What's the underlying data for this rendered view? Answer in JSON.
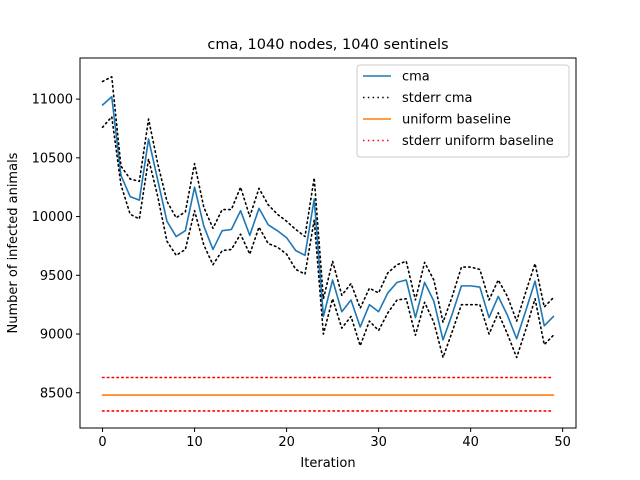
{
  "chart_data": {
    "type": "line",
    "title": "cma, 1040 nodes, 1040 sentinels",
    "xlabel": "Iteration",
    "ylabel": "Number of infected animals",
    "xlim": [
      -2.45,
      51.45
    ],
    "ylim": [
      8200,
      11350
    ],
    "xticks": [
      0,
      10,
      20,
      30,
      40,
      50
    ],
    "yticks": [
      8500,
      9000,
      9500,
      10000,
      10500,
      11000
    ],
    "grid": false,
    "legend_position": "top-right",
    "x": [
      0,
      1,
      2,
      3,
      4,
      5,
      6,
      7,
      8,
      9,
      10,
      11,
      12,
      13,
      14,
      15,
      16,
      17,
      18,
      19,
      20,
      21,
      22,
      23,
      24,
      25,
      26,
      27,
      28,
      29,
      30,
      31,
      32,
      33,
      34,
      35,
      36,
      37,
      38,
      39,
      40,
      41,
      42,
      43,
      44,
      45,
      46,
      47,
      48,
      49
    ],
    "series": [
      {
        "name": "cma",
        "color": "#1f77b4",
        "style": "solid",
        "values": [
          10950,
          11020,
          10350,
          10170,
          10140,
          10660,
          10310,
          9960,
          9830,
          9880,
          10250,
          9920,
          9720,
          9880,
          9890,
          10050,
          9840,
          10070,
          9930,
          9880,
          9820,
          9710,
          9670,
          10150,
          9150,
          9460,
          9190,
          9290,
          9060,
          9250,
          9190,
          9350,
          9440,
          9460,
          9140,
          9440,
          9280,
          8950,
          9170,
          9410,
          9410,
          9400,
          9140,
          9320,
          9160,
          8960,
          9200,
          9450,
          9070,
          9150
        ]
      },
      {
        "name": "stderr cma",
        "color": "#000000",
        "style": "dotted",
        "values": [
          11150,
          11190,
          10430,
          10320,
          10300,
          10830,
          10450,
          10130,
          9990,
          10040,
          10450,
          10080,
          9900,
          10060,
          10060,
          10250,
          10000,
          10240,
          10100,
          10020,
          9960,
          9890,
          9830,
          10330,
          9300,
          9620,
          9330,
          9430,
          9220,
          9390,
          9350,
          9520,
          9590,
          9620,
          9290,
          9610,
          9460,
          9100,
          9320,
          9570,
          9570,
          9550,
          9290,
          9460,
          9320,
          9110,
          9360,
          9600,
          9230,
          9310
        ]
      },
      {
        "name": "",
        "color": "#000000",
        "style": "dotted",
        "legend": false,
        "values": [
          10760,
          10850,
          10270,
          10020,
          9980,
          10490,
          10170,
          9790,
          9670,
          9720,
          10050,
          9760,
          9590,
          9710,
          9720,
          9850,
          9680,
          9910,
          9770,
          9740,
          9680,
          9550,
          9510,
          9970,
          9000,
          9300,
          9050,
          9150,
          8900,
          9110,
          9030,
          9180,
          9290,
          9300,
          8990,
          9270,
          9100,
          8800,
          9020,
          9250,
          9250,
          9250,
          9000,
          9180,
          9000,
          8800,
          9040,
          9300,
          8910,
          8990
        ]
      },
      {
        "name": "uniform baseline",
        "color": "#ff7f0e",
        "style": "solid",
        "values": [
          8480,
          8480,
          8480,
          8480,
          8480,
          8480,
          8480,
          8480,
          8480,
          8480,
          8480,
          8480,
          8480,
          8480,
          8480,
          8480,
          8480,
          8480,
          8480,
          8480,
          8480,
          8480,
          8480,
          8480,
          8480,
          8480,
          8480,
          8480,
          8480,
          8480,
          8480,
          8480,
          8480,
          8480,
          8480,
          8480,
          8480,
          8480,
          8480,
          8480,
          8480,
          8480,
          8480,
          8480,
          8480,
          8480,
          8480,
          8480,
          8480,
          8480
        ]
      },
      {
        "name": "stderr uniform baseline",
        "color": "#ff0000",
        "style": "dotted",
        "values": [
          8630,
          8630,
          8630,
          8630,
          8630,
          8630,
          8630,
          8630,
          8630,
          8630,
          8630,
          8630,
          8630,
          8630,
          8630,
          8630,
          8630,
          8630,
          8630,
          8630,
          8630,
          8630,
          8630,
          8630,
          8630,
          8630,
          8630,
          8630,
          8630,
          8630,
          8630,
          8630,
          8630,
          8630,
          8630,
          8630,
          8630,
          8630,
          8630,
          8630,
          8630,
          8630,
          8630,
          8630,
          8630,
          8630,
          8630,
          8630,
          8630,
          8630
        ]
      },
      {
        "name": "",
        "color": "#ff0000",
        "style": "dotted",
        "legend": false,
        "values": [
          8345,
          8345,
          8345,
          8345,
          8345,
          8345,
          8345,
          8345,
          8345,
          8345,
          8345,
          8345,
          8345,
          8345,
          8345,
          8345,
          8345,
          8345,
          8345,
          8345,
          8345,
          8345,
          8345,
          8345,
          8345,
          8345,
          8345,
          8345,
          8345,
          8345,
          8345,
          8345,
          8345,
          8345,
          8345,
          8345,
          8345,
          8345,
          8345,
          8345,
          8345,
          8345,
          8345,
          8345,
          8345,
          8345,
          8345,
          8345,
          8345,
          8345
        ]
      }
    ]
  }
}
